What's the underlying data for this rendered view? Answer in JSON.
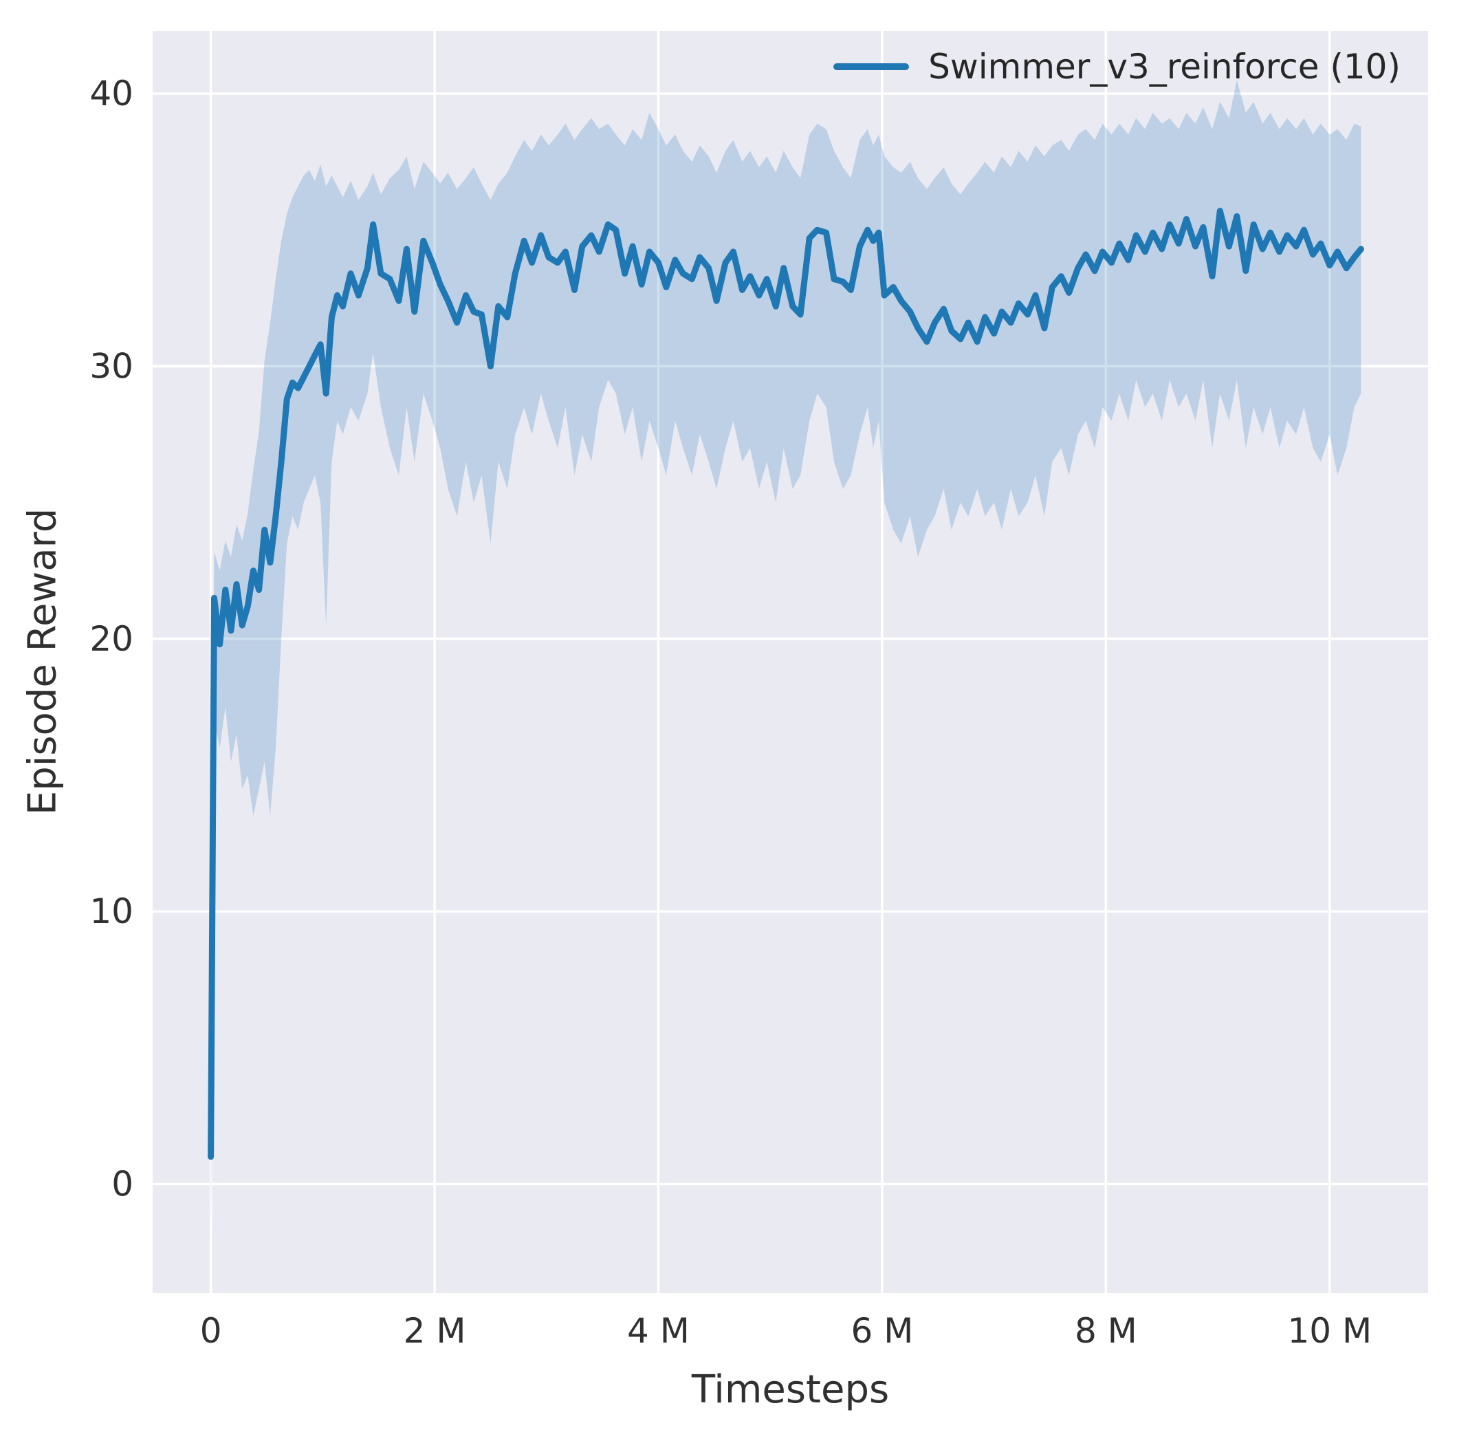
{
  "chart_data": {
    "type": "line",
    "title": "",
    "xlabel": "Timesteps",
    "ylabel": "Episode Reward",
    "xlim": [
      -0.52,
      10.88
    ],
    "ylim": [
      -4.0,
      42.3
    ],
    "grid": true,
    "legend_position": "upper right",
    "colors": {
      "axes_background": "#eaeaf2",
      "grid_color": "#ffffff",
      "tick_color": "#303030",
      "line_color": "#1f77b4",
      "band_color": "#1f77b4",
      "band_opacity": 0.22
    },
    "xticks": [
      {
        "value": 0,
        "label": "0"
      },
      {
        "value": 2,
        "label": "2 M"
      },
      {
        "value": 4,
        "label": "4 M"
      },
      {
        "value": 6,
        "label": "6 M"
      },
      {
        "value": 8,
        "label": "8 M"
      },
      {
        "value": 10,
        "label": "10 M"
      }
    ],
    "yticks": [
      {
        "value": 0,
        "label": "0"
      },
      {
        "value": 10,
        "label": "10"
      },
      {
        "value": 20,
        "label": "20"
      },
      {
        "value": 30,
        "label": "30"
      },
      {
        "value": 40,
        "label": "40"
      }
    ],
    "x_units": "millions of timesteps",
    "series": [
      {
        "name": "Swimmer_v3_reinforce (10)",
        "color": "#1f77b4",
        "points_format": [
          "x_millions",
          "band_low",
          "mean",
          "band_high"
        ],
        "points": [
          [
            0.0,
            -2.8,
            1.0,
            4.5
          ],
          [
            0.03,
            17.0,
            21.5,
            23.2
          ],
          [
            0.08,
            16.0,
            19.8,
            22.5
          ],
          [
            0.13,
            17.5,
            21.8,
            23.6
          ],
          [
            0.18,
            15.5,
            20.3,
            23.0
          ],
          [
            0.23,
            16.5,
            22.0,
            24.2
          ],
          [
            0.28,
            14.5,
            20.5,
            23.6
          ],
          [
            0.33,
            15.0,
            21.2,
            24.6
          ],
          [
            0.38,
            13.5,
            22.5,
            26.2
          ],
          [
            0.43,
            14.5,
            21.8,
            27.6
          ],
          [
            0.48,
            15.5,
            24.0,
            30.2
          ],
          [
            0.53,
            13.5,
            22.8,
            31.6
          ],
          [
            0.58,
            16.0,
            24.5,
            33.2
          ],
          [
            0.63,
            20.0,
            26.5,
            34.6
          ],
          [
            0.68,
            23.5,
            28.8,
            35.6
          ],
          [
            0.73,
            24.5,
            29.4,
            36.2
          ],
          [
            0.78,
            24.0,
            29.2,
            36.6
          ],
          [
            0.83,
            25.0,
            29.6,
            37.0
          ],
          [
            0.88,
            25.5,
            30.0,
            37.2
          ],
          [
            0.93,
            26.0,
            30.4,
            36.8
          ],
          [
            0.98,
            25.0,
            30.8,
            37.4
          ],
          [
            1.03,
            20.5,
            29.0,
            36.6
          ],
          [
            1.08,
            26.5,
            31.8,
            37.0
          ],
          [
            1.13,
            28.0,
            32.6,
            36.6
          ],
          [
            1.18,
            27.5,
            32.2,
            36.2
          ],
          [
            1.25,
            28.5,
            33.4,
            36.8
          ],
          [
            1.32,
            28.0,
            32.6,
            36.1
          ],
          [
            1.4,
            29.0,
            33.6,
            36.6
          ],
          [
            1.45,
            30.5,
            35.2,
            37.1
          ],
          [
            1.52,
            28.5,
            33.4,
            36.3
          ],
          [
            1.6,
            27.0,
            33.2,
            36.9
          ],
          [
            1.68,
            26.0,
            32.4,
            37.2
          ],
          [
            1.75,
            28.5,
            34.3,
            37.7
          ],
          [
            1.82,
            26.5,
            32.0,
            36.5
          ],
          [
            1.9,
            29.0,
            34.6,
            37.5
          ],
          [
            1.98,
            28.0,
            33.8,
            37.1
          ],
          [
            2.05,
            27.0,
            33.0,
            36.7
          ],
          [
            2.12,
            25.5,
            32.4,
            37.1
          ],
          [
            2.2,
            24.5,
            31.6,
            36.5
          ],
          [
            2.28,
            26.5,
            32.6,
            36.9
          ],
          [
            2.35,
            25.0,
            32.0,
            37.3
          ],
          [
            2.42,
            26.0,
            31.9,
            36.7
          ],
          [
            2.5,
            23.5,
            30.0,
            36.1
          ],
          [
            2.57,
            26.5,
            32.2,
            36.7
          ],
          [
            2.65,
            25.5,
            31.8,
            37.1
          ],
          [
            2.72,
            27.5,
            33.4,
            37.7
          ],
          [
            2.8,
            28.5,
            34.6,
            38.3
          ],
          [
            2.87,
            27.5,
            33.8,
            37.9
          ],
          [
            2.95,
            29.0,
            34.8,
            38.5
          ],
          [
            3.02,
            28.0,
            34.0,
            38.1
          ],
          [
            3.1,
            27.0,
            33.8,
            38.5
          ],
          [
            3.17,
            28.5,
            34.2,
            38.9
          ],
          [
            3.25,
            26.0,
            32.8,
            38.3
          ],
          [
            3.32,
            27.5,
            34.4,
            38.7
          ],
          [
            3.4,
            26.5,
            34.8,
            39.1
          ],
          [
            3.47,
            28.5,
            34.2,
            38.7
          ],
          [
            3.55,
            29.5,
            35.2,
            38.9
          ],
          [
            3.62,
            29.0,
            35.0,
            38.5
          ],
          [
            3.7,
            27.5,
            33.4,
            38.1
          ],
          [
            3.77,
            28.5,
            34.4,
            38.7
          ],
          [
            3.85,
            26.5,
            33.0,
            38.3
          ],
          [
            3.92,
            28.0,
            34.2,
            39.3
          ],
          [
            4.0,
            27.0,
            33.8,
            38.7
          ],
          [
            4.07,
            26.0,
            32.9,
            38.1
          ],
          [
            4.15,
            28.0,
            33.9,
            38.5
          ],
          [
            4.22,
            27.0,
            33.4,
            37.9
          ],
          [
            4.3,
            26.0,
            33.2,
            37.5
          ],
          [
            4.37,
            27.5,
            34.0,
            38.1
          ],
          [
            4.45,
            26.5,
            33.6,
            37.7
          ],
          [
            4.52,
            25.5,
            32.4,
            37.1
          ],
          [
            4.6,
            27.0,
            33.8,
            37.9
          ],
          [
            4.67,
            28.0,
            34.2,
            38.3
          ],
          [
            4.75,
            26.5,
            32.8,
            37.5
          ],
          [
            4.82,
            27.0,
            33.3,
            37.9
          ],
          [
            4.9,
            25.5,
            32.6,
            37.3
          ],
          [
            4.97,
            26.5,
            33.2,
            37.7
          ],
          [
            5.05,
            25.0,
            32.2,
            37.1
          ],
          [
            5.12,
            27.0,
            33.6,
            37.9
          ],
          [
            5.2,
            25.5,
            32.2,
            37.3
          ],
          [
            5.27,
            26.0,
            31.9,
            36.9
          ],
          [
            5.35,
            28.0,
            34.7,
            38.5
          ],
          [
            5.42,
            29.0,
            35.0,
            38.9
          ],
          [
            5.5,
            28.5,
            34.9,
            38.7
          ],
          [
            5.57,
            26.5,
            33.2,
            37.9
          ],
          [
            5.65,
            25.5,
            33.1,
            37.3
          ],
          [
            5.72,
            26.0,
            32.8,
            36.9
          ],
          [
            5.8,
            27.5,
            34.4,
            38.3
          ],
          [
            5.87,
            28.5,
            35.0,
            38.7
          ],
          [
            5.92,
            27.0,
            34.6,
            38.1
          ],
          [
            5.97,
            28.0,
            34.9,
            38.5
          ],
          [
            6.02,
            25.0,
            32.6,
            37.7
          ],
          [
            6.1,
            24.0,
            32.9,
            37.3
          ],
          [
            6.17,
            23.5,
            32.4,
            37.1
          ],
          [
            6.25,
            24.5,
            32.0,
            37.5
          ],
          [
            6.32,
            23.0,
            31.4,
            36.9
          ],
          [
            6.4,
            24.0,
            30.9,
            36.5
          ],
          [
            6.47,
            24.5,
            31.6,
            36.9
          ],
          [
            6.55,
            25.5,
            32.1,
            37.3
          ],
          [
            6.62,
            24.0,
            31.3,
            36.7
          ],
          [
            6.7,
            25.0,
            31.0,
            36.3
          ],
          [
            6.77,
            24.5,
            31.6,
            36.7
          ],
          [
            6.85,
            25.5,
            30.9,
            37.1
          ],
          [
            6.92,
            24.5,
            31.8,
            37.5
          ],
          [
            7.0,
            25.0,
            31.2,
            37.1
          ],
          [
            7.07,
            24.0,
            32.0,
            37.7
          ],
          [
            7.15,
            25.5,
            31.6,
            37.3
          ],
          [
            7.22,
            24.5,
            32.3,
            37.9
          ],
          [
            7.3,
            25.0,
            31.9,
            37.5
          ],
          [
            7.37,
            26.0,
            32.6,
            38.1
          ],
          [
            7.45,
            24.5,
            31.4,
            37.7
          ],
          [
            7.52,
            26.5,
            32.9,
            38.1
          ],
          [
            7.6,
            27.0,
            33.3,
            38.3
          ],
          [
            7.67,
            26.0,
            32.7,
            37.9
          ],
          [
            7.75,
            27.5,
            33.6,
            38.5
          ],
          [
            7.82,
            28.0,
            34.1,
            38.7
          ],
          [
            7.9,
            27.0,
            33.5,
            38.3
          ],
          [
            7.97,
            28.5,
            34.2,
            38.9
          ],
          [
            8.05,
            28.0,
            33.8,
            38.5
          ],
          [
            8.12,
            29.0,
            34.5,
            38.9
          ],
          [
            8.2,
            28.0,
            33.9,
            38.5
          ],
          [
            8.27,
            29.5,
            34.8,
            39.1
          ],
          [
            8.35,
            28.5,
            34.2,
            38.7
          ],
          [
            8.42,
            29.0,
            34.9,
            39.3
          ],
          [
            8.5,
            28.0,
            34.3,
            38.9
          ],
          [
            8.57,
            29.5,
            35.2,
            39.1
          ],
          [
            8.65,
            28.5,
            34.5,
            38.7
          ],
          [
            8.72,
            29.0,
            35.4,
            39.3
          ],
          [
            8.8,
            28.0,
            34.4,
            38.9
          ],
          [
            8.87,
            29.5,
            35.1,
            39.5
          ],
          [
            8.95,
            27.0,
            33.3,
            38.7
          ],
          [
            9.02,
            29.0,
            35.7,
            39.7
          ],
          [
            9.1,
            28.0,
            34.4,
            39.1
          ],
          [
            9.17,
            29.5,
            35.5,
            40.5
          ],
          [
            9.25,
            27.0,
            33.5,
            39.3
          ],
          [
            9.32,
            28.5,
            35.2,
            39.7
          ],
          [
            9.4,
            27.5,
            34.3,
            38.9
          ],
          [
            9.47,
            28.5,
            34.9,
            39.3
          ],
          [
            9.55,
            27.0,
            34.2,
            38.7
          ],
          [
            9.62,
            28.0,
            34.8,
            39.1
          ],
          [
            9.7,
            27.5,
            34.4,
            38.7
          ],
          [
            9.77,
            28.5,
            35.0,
            39.1
          ],
          [
            9.85,
            27.0,
            34.1,
            38.5
          ],
          [
            9.92,
            26.5,
            34.5,
            38.9
          ],
          [
            10.0,
            27.5,
            33.7,
            38.5
          ],
          [
            10.07,
            26.0,
            34.2,
            38.7
          ],
          [
            10.15,
            27.0,
            33.6,
            38.3
          ],
          [
            10.22,
            28.5,
            34.0,
            38.9
          ],
          [
            10.28,
            29.0,
            34.3,
            38.8
          ]
        ]
      }
    ]
  }
}
